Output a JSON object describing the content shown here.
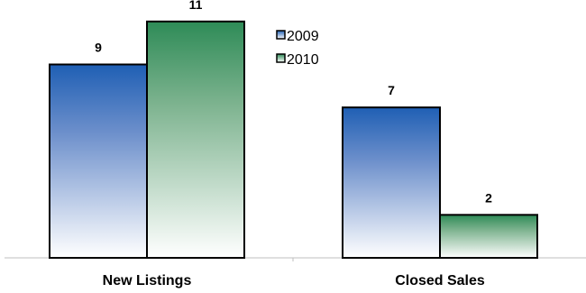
{
  "chart_data": {
    "type": "bar",
    "categories": [
      "New Listings",
      "Closed Sales"
    ],
    "series": [
      {
        "name": "2009",
        "values": [
          9,
          7
        ],
        "color": "#2a63b0"
      },
      {
        "name": "2010",
        "values": [
          11,
          2
        ],
        "color": "#3a8a55"
      }
    ],
    "ylim": [
      0,
      12
    ],
    "grid": false,
    "legend_position": "top-center",
    "show_data_labels": true
  }
}
